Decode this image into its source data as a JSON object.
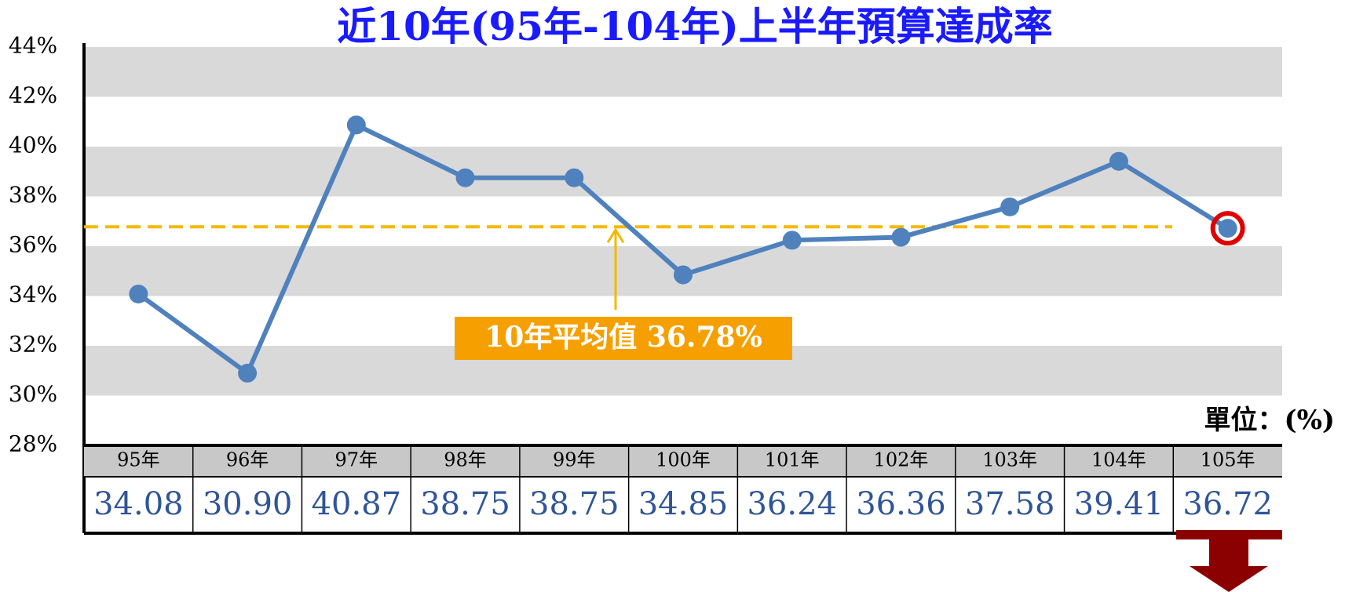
{
  "chart_data": {
    "type": "line",
    "title": "近10年(95年-104年)上半年預算達成率",
    "unit_label": "單位：(%)",
    "categories": [
      "95年",
      "96年",
      "97年",
      "98年",
      "99年",
      "100年",
      "101年",
      "102年",
      "103年",
      "104年",
      "105年"
    ],
    "series": [
      {
        "name": "上半年預算達成率",
        "color": "#4f81bd",
        "values": [
          34.08,
          30.9,
          40.87,
          38.75,
          38.75,
          34.85,
          36.24,
          36.36,
          37.58,
          39.41,
          36.72
        ],
        "value_labels": [
          "34.08",
          "30.90",
          "40.87",
          "38.75",
          "38.75",
          "34.85",
          "36.24",
          "36.36",
          "37.58",
          "39.41",
          "36.72"
        ]
      }
    ],
    "highlight": {
      "index": 10,
      "color": "#e00000"
    },
    "average": {
      "value": 36.78,
      "label": "10年平均值 36.78%",
      "color": "#f5b800"
    },
    "ylim": [
      28,
      44
    ],
    "yticks": [
      {
        "value": 28,
        "label": "28%"
      },
      {
        "value": 30,
        "label": "30%"
      },
      {
        "value": 32,
        "label": "32%"
      },
      {
        "value": 34,
        "label": "34%"
      },
      {
        "value": 36,
        "label": "36%"
      },
      {
        "value": 38,
        "label": "38%"
      },
      {
        "value": 40,
        "label": "40%"
      },
      {
        "value": 42,
        "label": "42%"
      },
      {
        "value": 44,
        "label": "44%"
      }
    ],
    "grid": true
  }
}
